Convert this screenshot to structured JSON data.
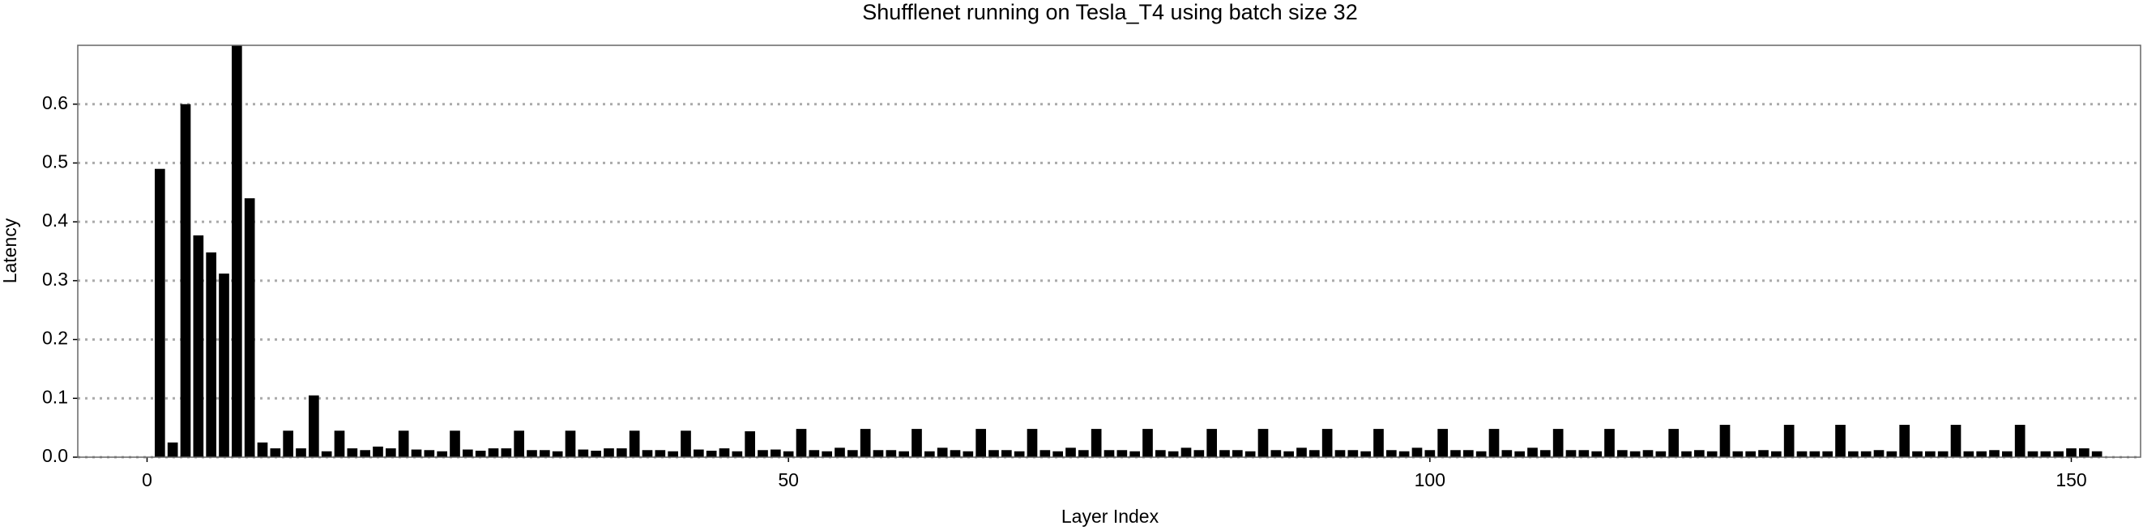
{
  "chart_data": {
    "type": "bar",
    "title": "Shufflenet running on Tesla_T4 using batch size 32",
    "x_label": "Layer Index",
    "y_label": "Latency",
    "x": [
      1,
      2,
      3,
      4,
      5,
      6,
      7,
      8,
      9,
      10,
      11,
      12,
      13,
      14,
      15,
      16,
      17,
      18,
      19,
      20,
      21,
      22,
      23,
      24,
      25,
      26,
      27,
      28,
      29,
      30,
      31,
      32,
      33,
      34,
      35,
      36,
      37,
      38,
      39,
      40,
      41,
      42,
      43,
      44,
      45,
      46,
      47,
      48,
      49,
      50,
      51,
      52,
      53,
      54,
      55,
      56,
      57,
      58,
      59,
      60,
      61,
      62,
      63,
      64,
      65,
      66,
      67,
      68,
      69,
      70,
      71,
      72,
      73,
      74,
      75,
      76,
      77,
      78,
      79,
      80,
      81,
      82,
      83,
      84,
      85,
      86,
      87,
      88,
      89,
      90,
      91,
      92,
      93,
      94,
      95,
      96,
      97,
      98,
      99,
      100,
      101,
      102,
      103,
      104,
      105,
      106,
      107,
      108,
      109,
      110,
      111,
      112,
      113,
      114,
      115,
      116,
      117,
      118,
      119,
      120,
      121,
      122,
      123,
      124,
      125,
      126,
      127,
      128,
      129,
      130,
      131,
      132,
      133,
      134,
      135,
      136,
      137,
      138,
      139,
      140,
      141,
      142,
      143,
      144,
      145,
      146,
      147,
      148,
      149,
      150,
      151,
      152
    ],
    "values": [
      0.49,
      0.025,
      0.6,
      0.377,
      0.348,
      0.312,
      0.7,
      0.44,
      0.025,
      0.015,
      0.045,
      0.015,
      0.105,
      0.01,
      0.045,
      0.015,
      0.012,
      0.018,
      0.015,
      0.045,
      0.013,
      0.012,
      0.01,
      0.045,
      0.013,
      0.011,
      0.015,
      0.015,
      0.045,
      0.012,
      0.012,
      0.01,
      0.045,
      0.013,
      0.011,
      0.015,
      0.015,
      0.045,
      0.012,
      0.012,
      0.01,
      0.045,
      0.013,
      0.011,
      0.015,
      0.01,
      0.044,
      0.012,
      0.013,
      0.01,
      0.048,
      0.012,
      0.01,
      0.016,
      0.012,
      0.048,
      0.012,
      0.012,
      0.01,
      0.048,
      0.01,
      0.016,
      0.012,
      0.01,
      0.048,
      0.012,
      0.012,
      0.01,
      0.048,
      0.012,
      0.01,
      0.016,
      0.012,
      0.048,
      0.012,
      0.012,
      0.01,
      0.048,
      0.012,
      0.01,
      0.016,
      0.012,
      0.048,
      0.012,
      0.012,
      0.01,
      0.048,
      0.012,
      0.01,
      0.016,
      0.012,
      0.048,
      0.012,
      0.012,
      0.01,
      0.048,
      0.012,
      0.01,
      0.016,
      0.012,
      0.048,
      0.012,
      0.012,
      0.01,
      0.048,
      0.012,
      0.01,
      0.016,
      0.012,
      0.048,
      0.012,
      0.012,
      0.01,
      0.048,
      0.012,
      0.01,
      0.012,
      0.01,
      0.048,
      0.01,
      0.012,
      0.01,
      0.055,
      0.01,
      0.01,
      0.012,
      0.01,
      0.055,
      0.01,
      0.01,
      0.01,
      0.055,
      0.01,
      0.01,
      0.012,
      0.01,
      0.055,
      0.01,
      0.01,
      0.01,
      0.055,
      0.01,
      0.01,
      0.012,
      0.01,
      0.055,
      0.01,
      0.01,
      0.01,
      0.015,
      0.015,
      0.01
    ],
    "color": "#000000",
    "xlim": [
      -5.4,
      155.4
    ],
    "xticks": [
      0,
      50,
      100,
      150
    ],
    "ylim": [
      0,
      0.7
    ],
    "yticks": [
      {
        "value": 0,
        "label": "0.0"
      },
      0.1,
      0.2,
      0.3,
      0.4,
      0.5,
      0.6
    ],
    "grid": true
  }
}
